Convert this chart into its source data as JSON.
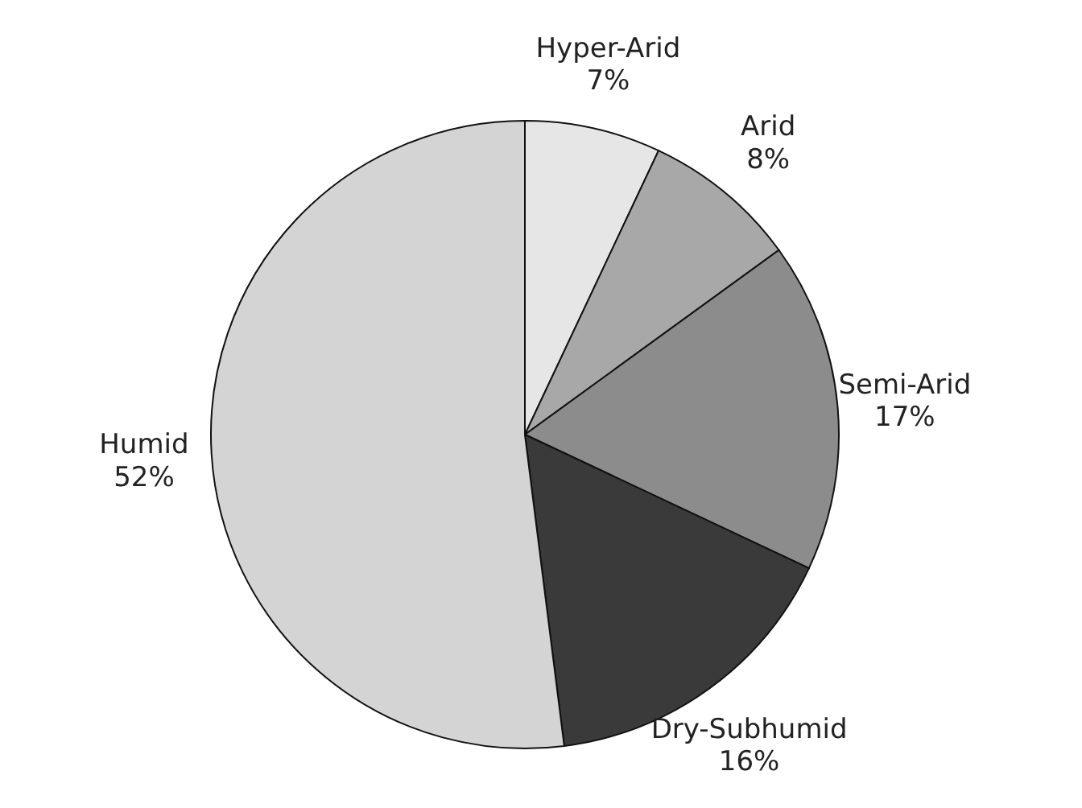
{
  "chart_data": {
    "type": "pie",
    "categories": [
      "Hyper-Arid",
      "Arid",
      "Semi-Arid",
      "Dry-Subhumid",
      "Humid"
    ],
    "values": [
      7,
      8,
      17,
      16,
      52
    ],
    "value_labels": [
      "7%",
      "8%",
      "17%",
      "16%",
      "52%"
    ],
    "colors": [
      "#e6e6e6",
      "#a8a8a8",
      "#8c8c8c",
      "#3a3a3a",
      "#d4d4d4"
    ]
  }
}
